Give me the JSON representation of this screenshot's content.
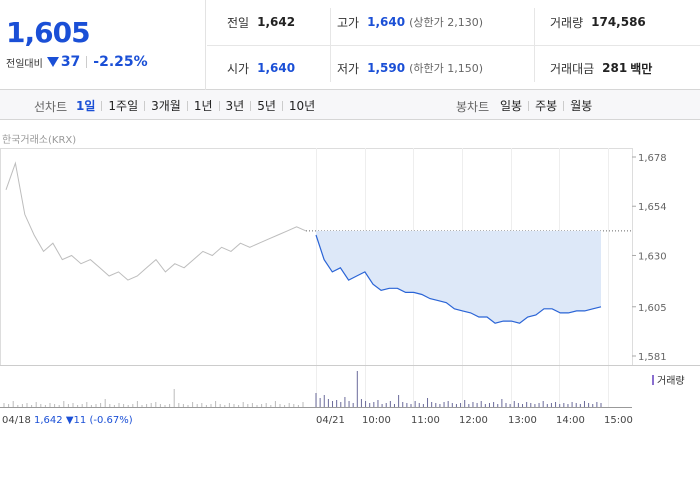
{
  "quote": {
    "price": "1,605",
    "change_label": "전일대비",
    "change": "37",
    "change_pct": "-2.25%"
  },
  "stats": {
    "prev_close": {
      "label": "전일",
      "value": "1,642"
    },
    "high": {
      "label": "고가",
      "value": "1,640",
      "sub": "(상한가 2,130)"
    },
    "volume": {
      "label": "거래량",
      "value": "174,586"
    },
    "open": {
      "label": "시가",
      "value": "1,640"
    },
    "low": {
      "label": "저가",
      "value": "1,590",
      "sub": "(하한가 1,150)"
    },
    "amount": {
      "label": "거래대금",
      "value": "281",
      "unit": "백만"
    }
  },
  "period_bar": {
    "line_label": "선차트",
    "line_items": [
      "1일",
      "1주일",
      "3개월",
      "1년",
      "3년",
      "5년",
      "10년"
    ],
    "active_line": "1일",
    "candle_label": "봉차트",
    "candle_items": [
      "일봉",
      "주봉",
      "월봉"
    ]
  },
  "chart": {
    "source": "한국거래소(KRX)",
    "volume_legend": "거래량",
    "prev_day": {
      "date": "04/18",
      "close": "1,642",
      "change": "▼11",
      "pct": "(-0.67%)"
    },
    "today_label": "04/21",
    "x_times": [
      "10:00",
      "11:00",
      "12:00",
      "13:00",
      "14:00",
      "15:00"
    ],
    "y_ticks": [
      "1,678",
      "1,654",
      "1,630",
      "1,605",
      "1,581"
    ],
    "colors": {
      "today_line": "#2a64d6",
      "today_fill": "#dde8f8",
      "prev_line": "#bdbdbd",
      "volume": "#6a6a9a"
    }
  },
  "chart_data": {
    "type": "line",
    "title": "",
    "ylim": [
      1581,
      1678
    ],
    "y_ticks": [
      1678,
      1654,
      1630,
      1605,
      1581
    ],
    "reference_close": 1642,
    "series": [
      {
        "name": "",
        "x": [
          "09:00",
          "09:10",
          "09:20",
          "09:30",
          "09:40",
          "09:50",
          "10:00",
          "10:10",
          "10:20",
          "10:30",
          "10:40",
          "10:50",
          "11:00",
          "11:10",
          "11:20",
          "11:30",
          "11:40",
          "11:50",
          "12:00",
          "12:10",
          "12:20",
          "12:30",
          "12:40",
          "12:50",
          "13:00",
          "13:10",
          "13:20",
          "13:30",
          "13:40",
          "13:50",
          "14:00",
          "14:10",
          "14:20",
          "14:30",
          "14:40",
          "14:50"
        ],
        "values": [
          1640,
          1628,
          1622,
          1624,
          1618,
          1620,
          1622,
          1616,
          1613,
          1614,
          1614,
          1612,
          1612,
          1611,
          1609,
          1608,
          1607,
          1604,
          1603,
          1602,
          1600,
          1600,
          1597,
          1598,
          1598,
          1597,
          1600,
          1601,
          1604,
          1604,
          1602,
          1602,
          1603,
          1603,
          1604,
          1605
        ]
      }
    ]
  }
}
